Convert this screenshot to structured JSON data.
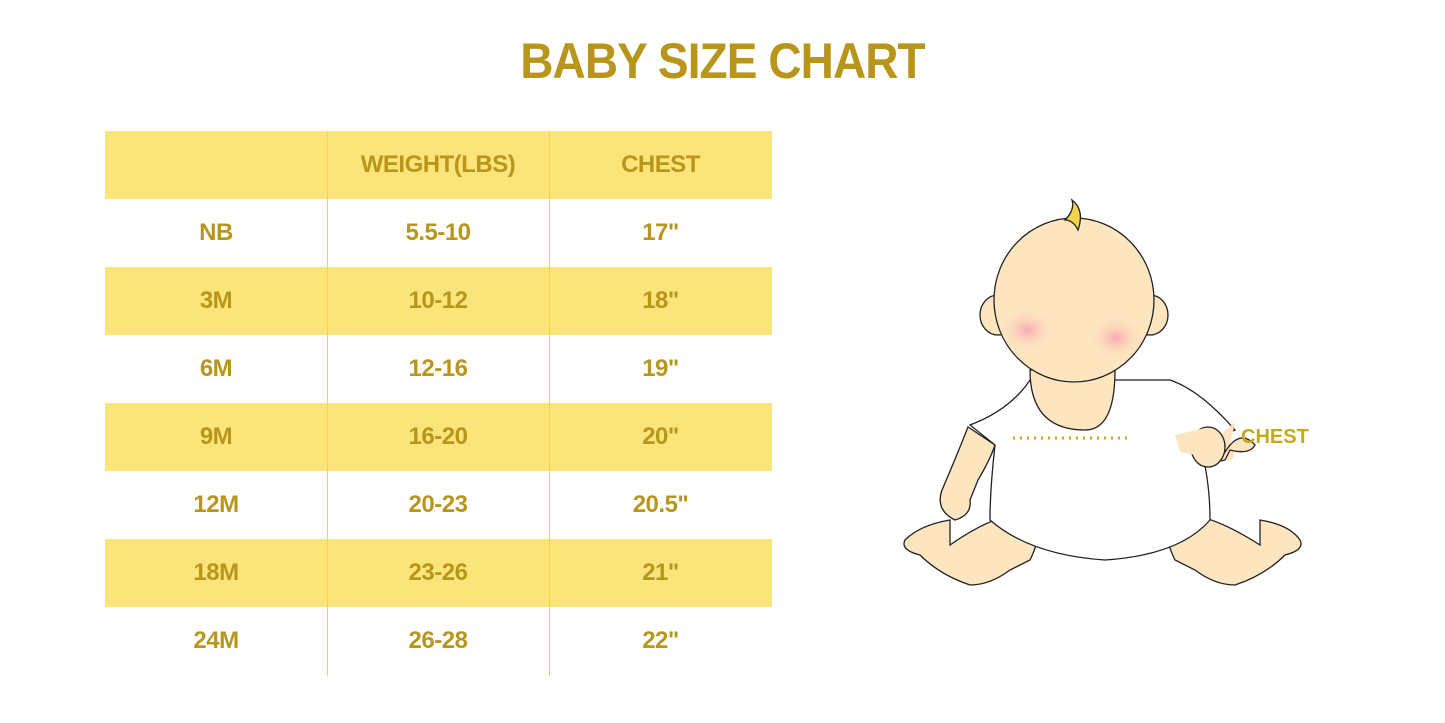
{
  "title": "BABY SIZE CHART",
  "table": {
    "headers": [
      "",
      "WEIGHT(LBS)",
      "CHEST"
    ],
    "rows": [
      [
        "NB",
        "5.5-10",
        "17\""
      ],
      [
        "3M",
        "10-12",
        "18\""
      ],
      [
        "6M",
        "12-16",
        "19\""
      ],
      [
        "9M",
        "16-20",
        "20\""
      ],
      [
        "12M",
        "20-23",
        "20.5\""
      ],
      [
        "18M",
        "23-26",
        "21\""
      ],
      [
        "24M",
        "26-28",
        "22\""
      ]
    ]
  },
  "illustration": {
    "chest_label": "CHEST"
  },
  "colors": {
    "text": "#b8961c",
    "band": "#fbe57a",
    "divider": "#f5d44a",
    "skin": "#fde5c0"
  }
}
